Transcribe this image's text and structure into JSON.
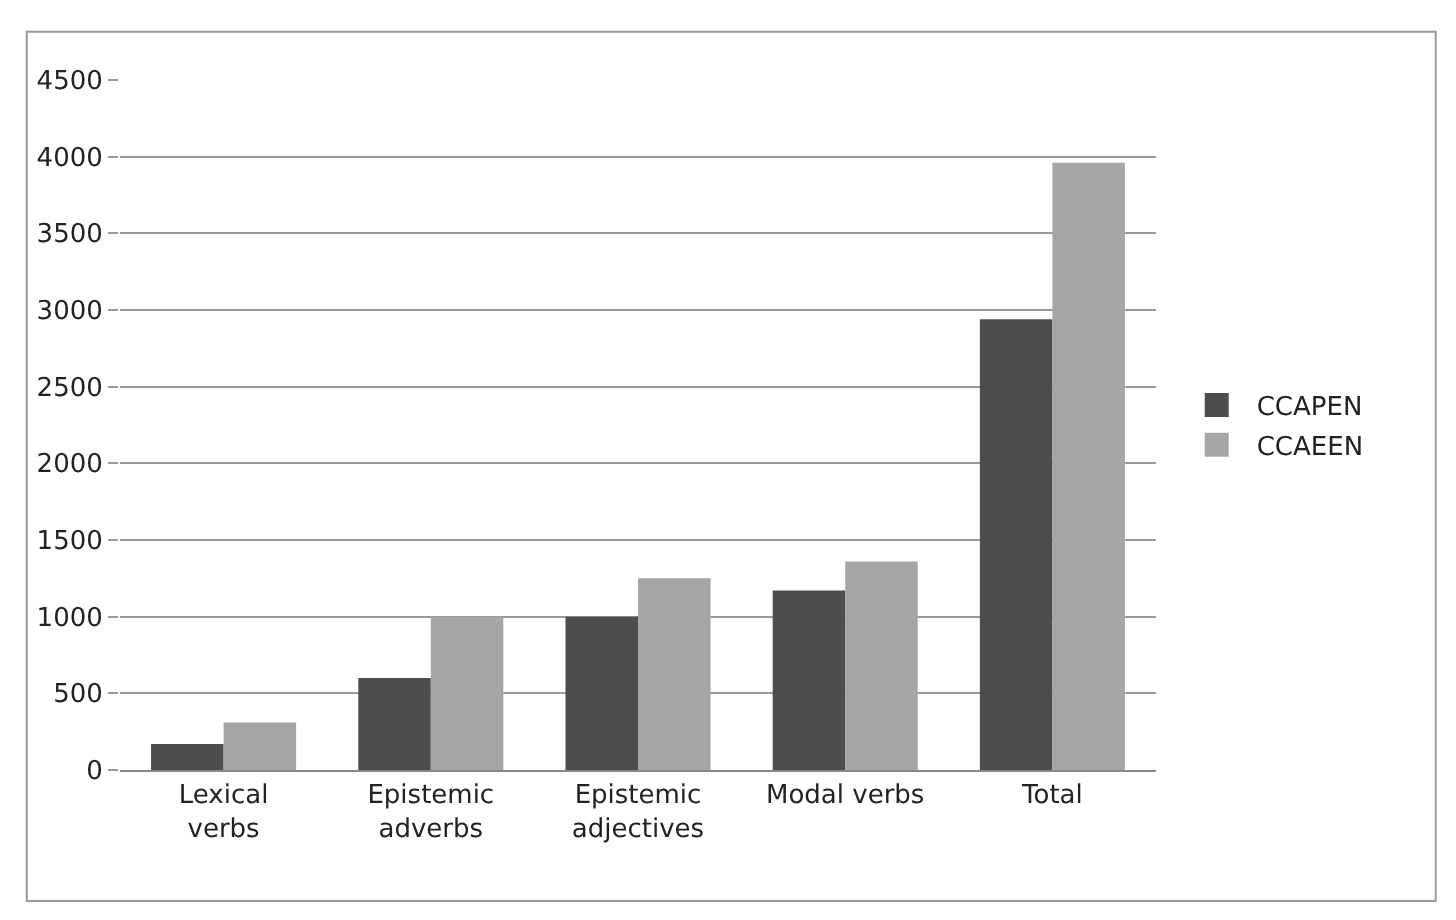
{
  "chart_data": {
    "type": "bar",
    "categories": [
      "Lexical\nverbs",
      "Epistemic\nadverbs",
      "Epistemic\nadjectives",
      "Modal verbs",
      "Total"
    ],
    "series": [
      {
        "name": "CCAPEN",
        "color": "#4d4d4d",
        "values": [
          170,
          600,
          1000,
          1170,
          2940
        ]
      },
      {
        "name": "CCAEEN",
        "color": "#a6a6a6",
        "values": [
          310,
          1000,
          1250,
          1360,
          3960
        ]
      }
    ],
    "ylim": [
      0,
      4500
    ],
    "yticks": [
      0,
      500,
      1000,
      1500,
      2000,
      2500,
      3000,
      3500,
      4000,
      4500
    ],
    "grid": "y",
    "legend": "right"
  }
}
